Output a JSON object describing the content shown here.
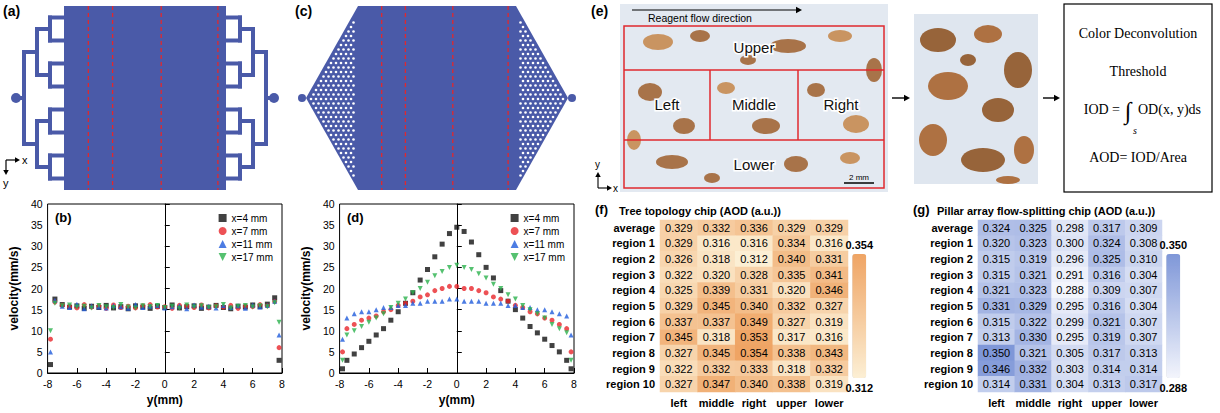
{
  "chart_data": [
    {
      "type": "scatter",
      "panel_label": "(b)",
      "x_label": "y(mm)",
      "y_label": "velocity(mm/s)",
      "x": [
        -7.8,
        -7.5,
        -7,
        -6.5,
        -6,
        -5.5,
        -5,
        -4.5,
        -4,
        -3.5,
        -3,
        -2.5,
        -2,
        -1.5,
        -1,
        -0.5,
        0,
        0.5,
        1,
        1.5,
        2,
        2.5,
        3,
        3.5,
        4,
        4.5,
        5,
        5.5,
        6,
        6.5,
        7,
        7.5,
        7.8
      ],
      "series": [
        {
          "name": "x=4 mm",
          "color": "#111111",
          "marker": "square",
          "values": [
            2,
            17.5,
            16.2,
            15.6,
            15.9,
            15.3,
            15.8,
            15.5,
            16.0,
            15.4,
            15.7,
            15.2,
            15.9,
            15.6,
            15.3,
            15.8,
            15.5,
            16.1,
            15.4,
            15.7,
            15.9,
            15.3,
            15.6,
            16.0,
            15.5,
            15.2,
            15.8,
            15.6,
            16.1,
            15.7,
            16.3,
            17.8,
            3
          ]
        },
        {
          "name": "x=7 mm",
          "color": "#e8262b",
          "marker": "circle",
          "values": [
            8,
            16.8,
            16.0,
            15.7,
            15.4,
            16.2,
            15.6,
            15.9,
            15.3,
            16.1,
            15.5,
            15.8,
            15.4,
            15.9,
            16.2,
            15.6,
            15.7,
            15.3,
            16.0,
            15.8,
            15.5,
            16.1,
            15.4,
            15.9,
            15.6,
            16.0,
            15.3,
            15.8,
            15.7,
            16.2,
            15.9,
            16.9,
            6
          ]
        },
        {
          "name": "x=11 mm",
          "color": "#1f5bdc",
          "marker": "triangle",
          "values": [
            5,
            17.2,
            15.8,
            15.5,
            16.3,
            15.2,
            15.9,
            15.6,
            15.4,
            16.0,
            15.7,
            15.3,
            16.2,
            15.5,
            15.8,
            16.0,
            15.4,
            15.7,
            15.9,
            15.2,
            16.1,
            15.6,
            15.8,
            15.4,
            16.0,
            15.5,
            15.9,
            15.3,
            16.1,
            15.6,
            16.0,
            17.0,
            9
          ]
        },
        {
          "name": "x=17 mm",
          "color": "#2bb24c",
          "marker": "triangle-down",
          "values": [
            10,
            16.5,
            15.9,
            16.1,
            15.6,
            15.8,
            15.4,
            16.0,
            15.7,
            15.5,
            16.2,
            15.6,
            15.4,
            15.9,
            15.7,
            16.0,
            15.5,
            15.8,
            15.3,
            16.1,
            15.6,
            15.9,
            15.5,
            15.7,
            16.2,
            15.4,
            15.8,
            16.0,
            15.6,
            15.9,
            15.7,
            16.6,
            12
          ]
        }
      ],
      "xlim": [
        -8,
        8
      ],
      "xticks": [
        -8,
        -6,
        -4,
        -2,
        0,
        2,
        4,
        6,
        8
      ],
      "ylim": [
        0,
        40
      ],
      "yticks": [
        0,
        5,
        10,
        15,
        20,
        25,
        30,
        35,
        40
      ],
      "legend": "upper right"
    },
    {
      "type": "scatter",
      "panel_label": "(d)",
      "x_label": "y(mm)",
      "y_label": "velocity(mm/s)",
      "x": [
        -7.8,
        -7.5,
        -7,
        -6.5,
        -6,
        -5.5,
        -5,
        -4.5,
        -4,
        -3.5,
        -3,
        -2.5,
        -2,
        -1.5,
        -1,
        -0.5,
        0,
        0.5,
        1,
        1.5,
        2,
        2.5,
        3,
        3.5,
        4,
        4.5,
        5,
        5.5,
        6,
        6.5,
        7,
        7.5,
        7.8
      ],
      "series": [
        {
          "name": "x=4 mm",
          "color": "#111111",
          "marker": "square",
          "values": [
            1,
            3,
            4.5,
            6,
            7.5,
            9,
            10.5,
            12.5,
            14.5,
            16.5,
            19,
            22,
            24.5,
            27.5,
            30.5,
            33,
            34.5,
            33.5,
            31,
            28,
            25,
            22.5,
            19.5,
            17,
            15,
            13,
            11,
            9.5,
            8,
            6.5,
            5,
            3,
            1
          ]
        },
        {
          "name": "x=7 mm",
          "color": "#e8262b",
          "marker": "circle",
          "values": [
            5,
            10.5,
            11.5,
            12.5,
            13,
            13.5,
            14.5,
            15,
            16,
            16.5,
            17,
            18,
            18.5,
            19.5,
            20,
            20.5,
            20.5,
            20,
            20,
            19.5,
            19,
            18,
            17.5,
            17,
            16,
            15.5,
            14.5,
            14,
            13,
            12.5,
            11.5,
            10.5,
            5
          ]
        },
        {
          "name": "x=11 mm",
          "color": "#1f5bdc",
          "marker": "triangle",
          "values": [
            8,
            13,
            14,
            14.5,
            14.5,
            15,
            15.5,
            15.5,
            16,
            16,
            16.5,
            16.5,
            17,
            17,
            17,
            17.5,
            17.5,
            17,
            17,
            17,
            16.5,
            16.5,
            16.5,
            16,
            16,
            15.5,
            15.5,
            15,
            15,
            14.5,
            14,
            13.5,
            9
          ]
        },
        {
          "name": "x=17 mm",
          "color": "#2bb24c",
          "marker": "triangle-down",
          "values": [
            3,
            9,
            10,
            11,
            12,
            13,
            14,
            15.5,
            16.5,
            17.5,
            19,
            20,
            21.5,
            23,
            24,
            25,
            25.5,
            25,
            24.5,
            23.5,
            22.5,
            21,
            20,
            18.5,
            17.5,
            16,
            15,
            14,
            13,
            11.5,
            10.5,
            9.5,
            3
          ]
        }
      ],
      "xlim": [
        -8,
        8
      ],
      "xticks": [
        -8,
        -6,
        -4,
        -2,
        0,
        2,
        4,
        6,
        8
      ],
      "ylim": [
        0,
        40
      ],
      "yticks": [
        0,
        5,
        10,
        15,
        20,
        25,
        30,
        35,
        40
      ],
      "legend": "upper right"
    },
    {
      "type": "heatmap",
      "panel_label": "(f)",
      "title": "Tree topology chip (AOD (a.u.))",
      "categories": [
        "left",
        "middle",
        "right",
        "upper",
        "lower"
      ],
      "rows": [
        "average",
        "region 1",
        "region 2",
        "region 3",
        "region 4",
        "region 5",
        "region 6",
        "region 7",
        "region 8",
        "region 9",
        "region 10"
      ],
      "values": [
        [
          0.329,
          0.332,
          0.336,
          0.329,
          0.329
        ],
        [
          0.329,
          0.316,
          0.316,
          0.334,
          0.316
        ],
        [
          0.326,
          0.318,
          0.312,
          0.34,
          0.331
        ],
        [
          0.322,
          0.32,
          0.328,
          0.335,
          0.341
        ],
        [
          0.325,
          0.339,
          0.331,
          0.32,
          0.346
        ],
        [
          0.329,
          0.345,
          0.34,
          0.332,
          0.327
        ],
        [
          0.337,
          0.337,
          0.349,
          0.327,
          0.319
        ],
        [
          0.345,
          0.318,
          0.353,
          0.317,
          0.316
        ],
        [
          0.327,
          0.345,
          0.354,
          0.338,
          0.343
        ],
        [
          0.322,
          0.332,
          0.333,
          0.318,
          0.332
        ],
        [
          0.327,
          0.347,
          0.34,
          0.338,
          0.319
        ]
      ],
      "value_labels": [
        [
          "0.329",
          "0.332",
          "0.336",
          "0.329",
          "0.329"
        ],
        [
          "0.329",
          "0.316",
          "0.316",
          "0.334",
          "0.316"
        ],
        [
          "0.326",
          "0.318",
          "0.312",
          "0.340",
          "0.331"
        ],
        [
          "0.322",
          "0.320",
          "0.328",
          "0.335",
          "0.341"
        ],
        [
          "0.325",
          "0.339",
          "0.331",
          "0.320",
          "0.346"
        ],
        [
          "0.329",
          "0.345",
          "0.340",
          "0.332",
          "0.327"
        ],
        [
          "0.337",
          "0.337",
          "0.349",
          "0.327",
          "0.319"
        ],
        [
          "0.345",
          "0.318",
          "0.353",
          "0.317",
          "0.316"
        ],
        [
          "0.327",
          "0.345",
          "0.354",
          "0.338",
          "0.343"
        ],
        [
          "0.322",
          "0.332",
          "0.333",
          "0.318",
          "0.332"
        ],
        [
          "0.327",
          "0.347",
          "0.340",
          "0.338",
          "0.319"
        ]
      ],
      "data_labels": true,
      "colorbar": {
        "range": [
          0.312,
          0.354
        ],
        "ticks": [
          0.312,
          0.354
        ],
        "colors": [
          "#fcefd4",
          "#efa464"
        ]
      }
    },
    {
      "type": "heatmap",
      "panel_label": "(g)",
      "title": "Pillar array flow-splitting chip (AOD (a.u.))",
      "categories": [
        "left",
        "middle",
        "right",
        "upper",
        "lower"
      ],
      "rows": [
        "average",
        "region 1",
        "region 2",
        "region 3",
        "region 4",
        "region 5",
        "region 6",
        "region 7",
        "region 8",
        "region 9",
        "region 10"
      ],
      "values": [
        [
          0.324,
          0.325,
          0.298,
          0.317,
          0.309
        ],
        [
          0.32,
          0.323,
          0.3,
          0.324,
          0.308
        ],
        [
          0.315,
          0.319,
          0.296,
          0.325,
          0.31
        ],
        [
          0.315,
          0.321,
          0.291,
          0.316,
          0.304
        ],
        [
          0.321,
          0.323,
          0.288,
          0.309,
          0.307
        ],
        [
          0.331,
          0.329,
          0.295,
          0.316,
          0.304
        ],
        [
          0.315,
          0.322,
          0.299,
          0.321,
          0.307
        ],
        [
          0.313,
          0.33,
          0.295,
          0.319,
          0.307
        ],
        [
          0.35,
          0.321,
          0.305,
          0.317,
          0.313
        ],
        [
          0.346,
          0.332,
          0.303,
          0.314,
          0.314
        ],
        [
          0.314,
          0.331,
          0.304,
          0.313,
          0.317
        ]
      ],
      "value_labels": [
        [
          "0.324",
          "0.325",
          "0.298",
          "0.317",
          "0.309"
        ],
        [
          "0.320",
          "0.323",
          "0.300",
          "0.324",
          "0.308"
        ],
        [
          "0.315",
          "0.319",
          "0.296",
          "0.325",
          "0.310"
        ],
        [
          "0.315",
          "0.321",
          "0.291",
          "0.316",
          "0.304"
        ],
        [
          "0.321",
          "0.323",
          "0.288",
          "0.309",
          "0.307"
        ],
        [
          "0.331",
          "0.329",
          "0.295",
          "0.316",
          "0.304"
        ],
        [
          "0.315",
          "0.322",
          "0.299",
          "0.321",
          "0.307"
        ],
        [
          "0.313",
          "0.330",
          "0.295",
          "0.319",
          "0.307"
        ],
        [
          "0.350",
          "0.321",
          "0.305",
          "0.317",
          "0.313"
        ],
        [
          "0.346",
          "0.332",
          "0.303",
          "0.314",
          "0.314"
        ],
        [
          "0.314",
          "0.331",
          "0.304",
          "0.313",
          "0.317"
        ]
      ],
      "data_labels": true,
      "colorbar": {
        "range": [
          0.288,
          0.35
        ],
        "ticks": [
          0.288,
          {
            "value": 0.35,
            "label": "0.350"
          }
        ],
        "colors": [
          "#f3f5fc",
          "#7f97d8"
        ]
      }
    }
  ],
  "diagrams": {
    "a": {
      "panel_label": "(a)",
      "axis_labels": {
        "x": "x",
        "y": "y"
      }
    },
    "c": {
      "panel_label": "(c)"
    },
    "e": {
      "panel_label": "(e)",
      "flow_label": "Reagent flow direction",
      "regions": {
        "upper": "Upper",
        "left": "Left",
        "middle": "Middle",
        "right": "Right",
        "lower": "Lower"
      },
      "scale_bar": "2 mm",
      "axis_labels": {
        "x": "x",
        "y": "y"
      },
      "steps": [
        "Color Deconvolution",
        "Threshold"
      ],
      "formula": {
        "lhs": "IOD =",
        "integral": "∫",
        "limit": "s",
        "integrand": "OD(x, y)ds"
      },
      "aod": "AOD= IOD/Area"
    }
  }
}
